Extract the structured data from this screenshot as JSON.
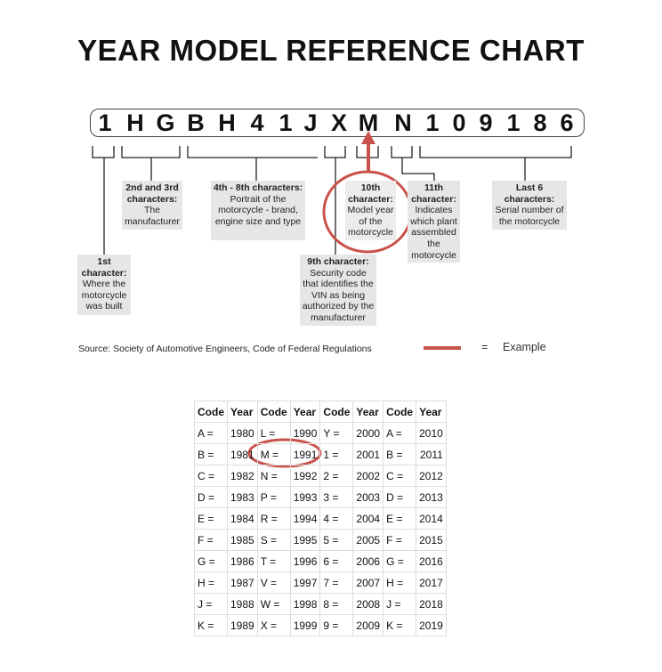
{
  "title": "YEAR MODEL REFERENCE CHART",
  "vin": [
    "1",
    "H",
    "G",
    "B",
    "H",
    "4",
    "1",
    "J",
    "X",
    "M",
    "N",
    "1",
    "0",
    "9",
    "1",
    "8",
    "6"
  ],
  "callouts": {
    "first": {
      "head": "1st character:",
      "body": "Where the motorcycle was built"
    },
    "second_third": {
      "head": "2nd and 3rd characters:",
      "body": "The manufacturer"
    },
    "fourth_eighth": {
      "head": "4th - 8th characters:",
      "body": "Portrait of the motorcycle - brand, engine size and type"
    },
    "ninth": {
      "head": "9th character:",
      "body": "Security code that identifies the VIN as being authorized by the manufacturer"
    },
    "tenth": {
      "head": "10th character:",
      "body": "Model year of the motorcycle"
    },
    "eleventh": {
      "head": "11th character:",
      "body": "Indicates which plant assembled the motorcycle"
    },
    "last6": {
      "head": "Last 6 characters:",
      "body": "Serial number of the motorcycle"
    }
  },
  "source": "Source:  Society of Automotive Engineers, Code of Federal Regulations",
  "legend": {
    "equals": "=",
    "label": "Example",
    "color": "#c9524a"
  },
  "table": {
    "headers": [
      "Code",
      "Year",
      "Code",
      "Year",
      "Code",
      "Year",
      "Code",
      "Year"
    ],
    "rows": [
      [
        "A =",
        "1980",
        "L =",
        "1990",
        "Y =",
        "2000",
        "A =",
        "2010"
      ],
      [
        "B =",
        "1981",
        "M =",
        "1991",
        "1 =",
        "2001",
        "B =",
        "2011"
      ],
      [
        "C =",
        "1982",
        "N =",
        "1992",
        "2 =",
        "2002",
        "C =",
        "2012"
      ],
      [
        "D =",
        "1983",
        "P =",
        "1993",
        "3 =",
        "2003",
        "D =",
        "2013"
      ],
      [
        "E =",
        "1984",
        "R =",
        "1994",
        "4 =",
        "2004",
        "E =",
        "2014"
      ],
      [
        "F =",
        "1985",
        "S =",
        "1995",
        "5 =",
        "2005",
        "F =",
        "2015"
      ],
      [
        "G =",
        "1986",
        "T =",
        "1996",
        "6 =",
        "2006",
        "G =",
        "2016"
      ],
      [
        "H =",
        "1987",
        "V =",
        "1997",
        "7 =",
        "2007",
        "H =",
        "2017"
      ],
      [
        "J =",
        "1988",
        "W =",
        "1998",
        "8 =",
        "2008",
        "J =",
        "2018"
      ],
      [
        "K =",
        "1989",
        "X =",
        "1999",
        "9 =",
        "2009",
        "K =",
        "2019"
      ]
    ]
  }
}
